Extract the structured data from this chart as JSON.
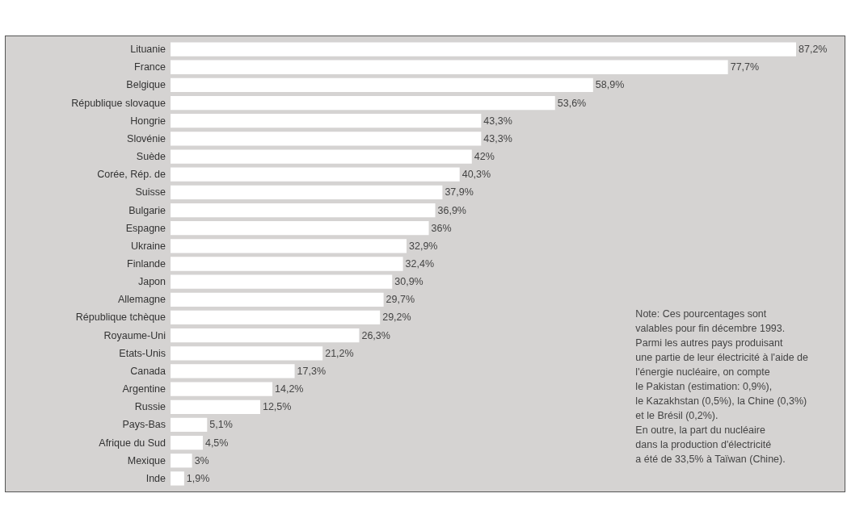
{
  "chart_data": {
    "type": "bar",
    "orientation": "horizontal",
    "categories": [
      "Lituanie",
      "France",
      "Belgique",
      "République slovaque",
      "Hongrie",
      "Slovénie",
      "Suède",
      "Corée, Rép. de",
      "Suisse",
      "Bulgarie",
      "Espagne",
      "Ukraine",
      "Finlande",
      "Japon",
      "Allemagne",
      "République tchèque",
      "Royaume-Uni",
      "Etats-Unis",
      "Canada",
      "Argentine",
      "Russie",
      "Pays-Bas",
      "Afrique du Sud",
      "Mexique",
      "Inde"
    ],
    "values": [
      87.2,
      77.7,
      58.9,
      53.6,
      43.3,
      43.3,
      42,
      40.3,
      37.9,
      36.9,
      36,
      32.9,
      32.4,
      30.9,
      29.7,
      29.2,
      26.3,
      21.2,
      17.3,
      14.2,
      12.5,
      5.1,
      4.5,
      3,
      1.9
    ],
    "value_labels": [
      "87,2%",
      "77,7%",
      "58,9%",
      "53,6%",
      "43,3%",
      "43,3%",
      "42%",
      "40,3%",
      "37,9%",
      "36,9%",
      "36%",
      "32,9%",
      "32,4%",
      "30,9%",
      "29,7%",
      "29,2%",
      "26,3%",
      "21,2%",
      "17,3%",
      "14,2%",
      "12,5%",
      "5,1%",
      "4,5%",
      "3%",
      "1,9%"
    ],
    "color": "#ffffff",
    "annotations": [
      "Note: Ces pourcentages sont\nvalables pour fin décembre 1993.\nParmi les autres pays produisant\nune partie de leur électricité à l'aide de\nl'énergie nucléaire, on compte\nle Pakistan (estimation: 0,9%),\nle Kazakhstan (0,5%), la Chine (0,3%)\net le Brésil (0,2%).\nEn outre, la part du nucléaire\ndans la production d'électricité\na été de 33,5% à Taïwan (Chine)."
    ]
  }
}
